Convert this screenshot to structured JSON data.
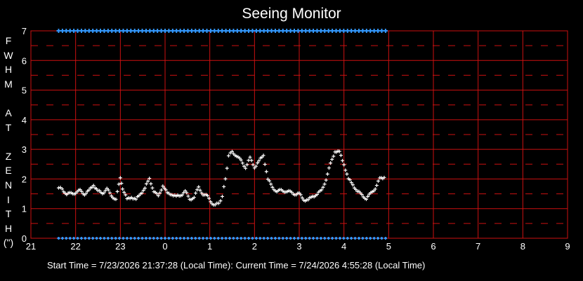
{
  "chart_data": {
    "type": "scatter",
    "title": "Seeing Monitor",
    "ylabel_letters": [
      "F",
      "W",
      "H",
      "M",
      "",
      "A",
      "T",
      "",
      "Z",
      "E",
      "N",
      "I",
      "T",
      "H",
      "(\")"
    ],
    "x_ticks": [
      "21",
      "22",
      "23",
      "0",
      "1",
      "2",
      "3",
      "4",
      "5",
      "6",
      "7",
      "8",
      "9"
    ],
    "y_ticks": [
      "0",
      "1",
      "2",
      "3",
      "4",
      "5",
      "6",
      "7"
    ],
    "xlim": [
      21,
      33
    ],
    "ylim": [
      0,
      7
    ],
    "grid": true,
    "colors": {
      "grid": "#cc1111",
      "series": "#ffffff",
      "markers": "#3399ff",
      "background": "#000000"
    },
    "series": [
      {
        "x": [
          21.62,
          21.7,
          21.8,
          21.9,
          22.0,
          22.1,
          22.2,
          22.3,
          22.4,
          22.5,
          22.6,
          22.7,
          22.8,
          22.9,
          23.0,
          23.05,
          23.15,
          23.25,
          23.35,
          23.45,
          23.55,
          23.65,
          23.75,
          23.85,
          23.95,
          24.05,
          24.15,
          24.25,
          24.35,
          24.45,
          24.55,
          24.65,
          24.75,
          24.85,
          24.95,
          25.05,
          25.12,
          25.2,
          25.28,
          25.35,
          25.42,
          25.5,
          25.6,
          25.7,
          25.8,
          25.9,
          26.0,
          26.1,
          26.2,
          26.3,
          26.4,
          26.5,
          26.6,
          26.7,
          26.8,
          26.9,
          27.0,
          27.1,
          27.2,
          27.3,
          27.4,
          27.5,
          27.6,
          27.7,
          27.8,
          27.9,
          28.0,
          28.1,
          28.2,
          28.3,
          28.4,
          28.5,
          28.6,
          28.7,
          28.8,
          28.9
        ],
        "y": [
          1.7,
          1.65,
          1.5,
          1.5,
          1.55,
          1.6,
          1.5,
          1.6,
          1.8,
          1.6,
          1.5,
          1.7,
          1.4,
          1.35,
          2.0,
          1.7,
          1.3,
          1.4,
          1.3,
          1.5,
          1.7,
          2.0,
          1.6,
          1.4,
          1.8,
          1.5,
          1.5,
          1.4,
          1.45,
          1.6,
          1.3,
          1.4,
          1.7,
          1.5,
          1.4,
          1.2,
          1.1,
          1.2,
          1.4,
          2.0,
          2.8,
          2.9,
          2.8,
          2.6,
          2.4,
          2.7,
          2.4,
          2.6,
          2.8,
          2.0,
          1.7,
          1.6,
          1.6,
          1.6,
          1.55,
          1.5,
          1.5,
          1.3,
          1.3,
          1.4,
          1.5,
          1.6,
          2.0,
          2.5,
          2.95,
          2.9,
          2.5,
          2.0,
          1.8,
          1.6,
          1.45,
          1.35,
          1.5,
          1.7,
          2.0,
          2.05
        ]
      }
    ],
    "top_markers": {
      "x_start": 21.62,
      "x_end": 28.95,
      "y": 7
    },
    "bottom_markers": {
      "x_start": 21.62,
      "x_end": 28.95,
      "y": 0
    }
  },
  "footer": {
    "start": "Start Time = 7/23/2026  21:37:28 (Local Time):",
    "current": "Current Time = 7/24/2026  4:55:28 (Local Time)"
  }
}
